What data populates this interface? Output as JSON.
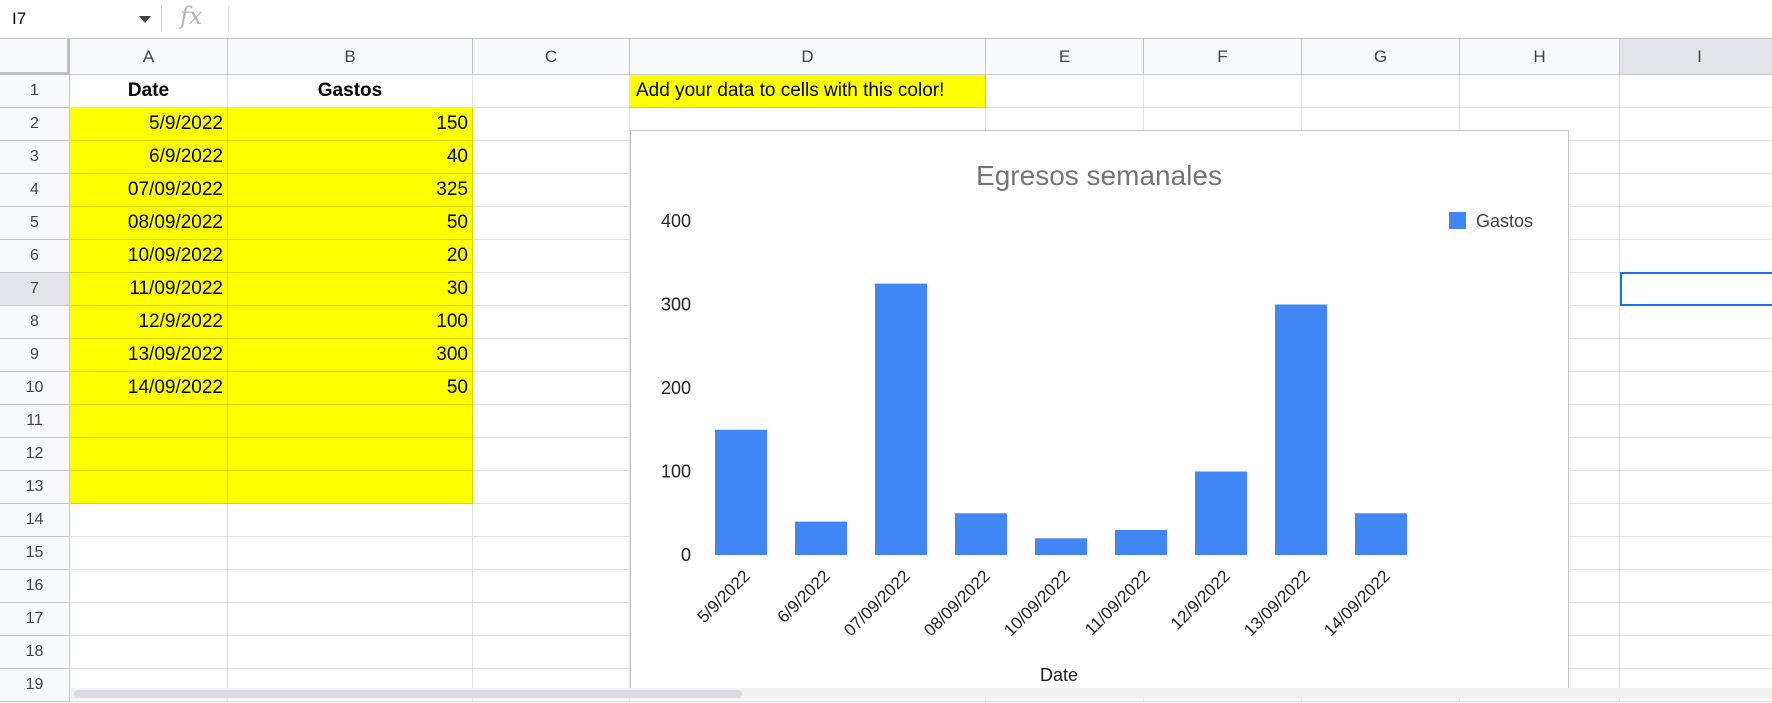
{
  "formula_bar": {
    "name_box": "I7",
    "fx_label": "fx",
    "formula": ""
  },
  "columns": [
    "A",
    "B",
    "C",
    "D",
    "E",
    "F",
    "G",
    "H",
    "I"
  ],
  "rows": [
    "1",
    "2",
    "3",
    "4",
    "5",
    "6",
    "7",
    "8",
    "9",
    "10",
    "11",
    "12",
    "13",
    "14",
    "15",
    "16",
    "17",
    "18",
    "19"
  ],
  "sheet": {
    "headers": {
      "date": "Date",
      "gastos": "Gastos"
    },
    "note": "Add your data to cells with this color!",
    "data_rows": [
      {
        "date": "5/9/2022",
        "value": "150"
      },
      {
        "date": "6/9/2022",
        "value": "40"
      },
      {
        "date": "07/09/2022",
        "value": "325"
      },
      {
        "date": "08/09/2022",
        "value": "50"
      },
      {
        "date": "10/09/2022",
        "value": "20"
      },
      {
        "date": "11/09/2022",
        "value": "30"
      },
      {
        "date": "12/9/2022",
        "value": "100"
      },
      {
        "date": "13/09/2022",
        "value": "300"
      },
      {
        "date": "14/09/2022",
        "value": "50"
      }
    ],
    "highlight_color": "#ffff00",
    "selected_cell": "I7"
  },
  "chart_data": {
    "type": "bar",
    "title": "Egresos semanales",
    "xlabel": "Date",
    "ylabel": "",
    "categories": [
      "5/9/2022",
      "6/9/2022",
      "07/09/2022",
      "08/09/2022",
      "10/09/2022",
      "11/09/2022",
      "12/9/2022",
      "13/09/2022",
      "14/09/2022"
    ],
    "series": [
      {
        "name": "Gastos",
        "values": [
          150,
          40,
          325,
          50,
          20,
          30,
          100,
          300,
          50
        ],
        "color": "#4285f4"
      }
    ],
    "ylim": [
      0,
      400
    ],
    "yticks": [
      "0",
      "100",
      "200",
      "300",
      "400"
    ],
    "grid": false,
    "legend": "top-right"
  }
}
